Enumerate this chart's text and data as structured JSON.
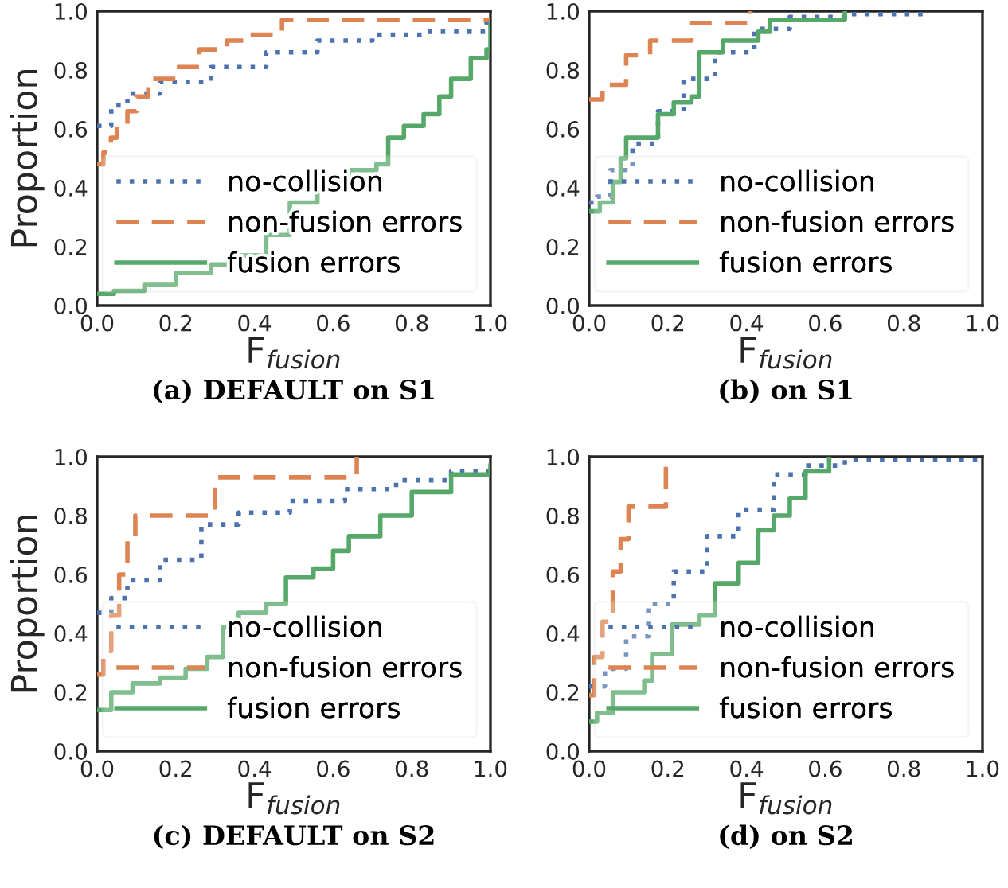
{
  "chart_data": [
    {
      "type": "step",
      "title": "(a) DEFAULT on S1",
      "xlabel": "F$_{fusion}$",
      "ylabel": "Proportion",
      "xlim": [
        0,
        1
      ],
      "ylim": [
        0,
        1
      ],
      "xticks": [
        {
          "value": 0,
          "label": "0.0"
        },
        {
          "value": 0.2,
          "label": "0.2"
        },
        {
          "value": 0.4,
          "label": "0.4"
        },
        {
          "value": 0.6,
          "label": "0.6"
        },
        {
          "value": 0.8,
          "label": "0.8"
        },
        {
          "value": 1,
          "label": "1.0"
        }
      ],
      "yticks": [
        {
          "value": 0,
          "label": "0.0"
        },
        {
          "value": 0.2,
          "label": "0.2"
        },
        {
          "value": 0.4,
          "label": "0.4"
        },
        {
          "value": 0.6,
          "label": "0.6"
        },
        {
          "value": 0.8,
          "label": "0.8"
        },
        {
          "value": 1,
          "label": "1.0"
        }
      ],
      "legend": "bottom right",
      "grid": false,
      "series": [
        {
          "name": "no-collision",
          "color": "#4c72b0",
          "line_style": "dotted",
          "x": [
            0,
            0.036,
            0.077,
            0.16,
            0.29,
            0.43,
            0.56,
            0.7,
            0.83,
            0.99,
            1
          ],
          "values": [
            0.61,
            0.68,
            0.72,
            0.76,
            0.81,
            0.86,
            0.9,
            0.92,
            0.93,
            0.96,
            0.96
          ]
        },
        {
          "name": "non-fusion errors",
          "color": "#dd8452",
          "line_style": "dashed",
          "x": [
            0,
            0.016,
            0.035,
            0.05,
            0.077,
            0.1,
            0.13,
            0.2,
            0.26,
            0.33,
            0.39,
            0.47,
            1
          ],
          "values": [
            0.48,
            0.52,
            0.57,
            0.61,
            0.66,
            0.71,
            0.77,
            0.81,
            0.87,
            0.9,
            0.92,
            0.97,
            0.97
          ]
        },
        {
          "name": "fusion errors",
          "color": "#55a868",
          "line_style": "solid",
          "x": [
            0,
            0.043,
            0.12,
            0.2,
            0.29,
            0.36,
            0.43,
            0.49,
            0.56,
            0.64,
            0.71,
            0.74,
            0.78,
            0.83,
            0.87,
            0.9,
            0.95,
            0.99,
            1
          ],
          "values": [
            0.04,
            0.05,
            0.07,
            0.11,
            0.14,
            0.17,
            0.24,
            0.35,
            0.42,
            0.46,
            0.48,
            0.57,
            0.61,
            0.65,
            0.71,
            0.77,
            0.84,
            0.87,
            0.96
          ]
        }
      ]
    },
    {
      "type": "step",
      "title": "(b) on S1",
      "xlabel": "F$_{fusion}$",
      "xlim": [
        0,
        1
      ],
      "ylim": [
        0,
        1
      ],
      "xticks": [
        {
          "value": 0,
          "label": "0.0"
        },
        {
          "value": 0.2,
          "label": "0.2"
        },
        {
          "value": 0.4,
          "label": "0.4"
        },
        {
          "value": 0.6,
          "label": "0.6"
        },
        {
          "value": 0.8,
          "label": "0.8"
        },
        {
          "value": 1,
          "label": "1.0"
        }
      ],
      "yticks": [
        {
          "value": 0,
          "label": "0.0"
        },
        {
          "value": 0.2,
          "label": "0.2"
        },
        {
          "value": 0.4,
          "label": "0.4"
        },
        {
          "value": 0.6,
          "label": "0.6"
        },
        {
          "value": 0.8,
          "label": "0.8"
        },
        {
          "value": 1,
          "label": "1.0"
        }
      ],
      "legend": "bottom right",
      "grid": false,
      "series": [
        {
          "name": "no-collision",
          "color": "#4c72b0",
          "line_style": "dotted",
          "x": [
            0,
            0.02,
            0.054,
            0.11,
            0.175,
            0.24,
            0.32,
            0.42,
            0.51,
            0.65,
            0.86
          ],
          "values": [
            0.35,
            0.37,
            0.46,
            0.55,
            0.66,
            0.77,
            0.86,
            0.94,
            0.98,
            0.99,
            1.0
          ]
        },
        {
          "name": "non-fusion errors",
          "color": "#dd8452",
          "line_style": "dashed",
          "x": [
            0,
            0.034,
            0.094,
            0.155,
            0.26,
            0.41
          ],
          "values": [
            0.7,
            0.75,
            0.85,
            0.9,
            0.96,
            1.0
          ]
        },
        {
          "name": "fusion errors",
          "color": "#55a868",
          "line_style": "solid",
          "x": [
            0,
            0.027,
            0.06,
            0.08,
            0.094,
            0.175,
            0.215,
            0.26,
            0.28,
            0.34,
            0.43,
            0.46,
            0.65
          ],
          "values": [
            0.32,
            0.35,
            0.42,
            0.5,
            0.57,
            0.65,
            0.69,
            0.71,
            0.86,
            0.9,
            0.93,
            0.97,
            1.0
          ]
        }
      ]
    },
    {
      "type": "step",
      "title": "(c) DEFAULT on S2",
      "xlabel": "F$_{fusion}$",
      "ylabel": "Proportion",
      "xlim": [
        0,
        1
      ],
      "ylim": [
        0,
        1
      ],
      "xticks": [
        {
          "value": 0,
          "label": "0.0"
        },
        {
          "value": 0.2,
          "label": "0.2"
        },
        {
          "value": 0.4,
          "label": "0.4"
        },
        {
          "value": 0.6,
          "label": "0.6"
        },
        {
          "value": 0.8,
          "label": "0.8"
        },
        {
          "value": 1,
          "label": "1.0"
        }
      ],
      "yticks": [
        {
          "value": 0,
          "label": "0.0"
        },
        {
          "value": 0.2,
          "label": "0.2"
        },
        {
          "value": 0.4,
          "label": "0.4"
        },
        {
          "value": 0.6,
          "label": "0.6"
        },
        {
          "value": 0.8,
          "label": "0.8"
        },
        {
          "value": 1,
          "label": "1.0"
        }
      ],
      "legend": "bottom right",
      "grid": false,
      "series": [
        {
          "name": "no-collision",
          "color": "#4c72b0",
          "line_style": "dotted",
          "x": [
            0,
            0.036,
            0.077,
            0.16,
            0.265,
            0.36,
            0.49,
            0.63,
            0.76,
            0.9,
            1
          ],
          "values": [
            0.47,
            0.52,
            0.58,
            0.65,
            0.77,
            0.81,
            0.85,
            0.89,
            0.92,
            0.95,
            0.98
          ]
        },
        {
          "name": "non-fusion errors",
          "color": "#dd8452",
          "line_style": "dashed",
          "x": [
            0,
            0.016,
            0.036,
            0.056,
            0.077,
            0.097,
            0.3,
            0.66
          ],
          "values": [
            0.26,
            0.34,
            0.46,
            0.6,
            0.73,
            0.8,
            0.93,
            1.0
          ]
        },
        {
          "name": "fusion errors",
          "color": "#55a868",
          "line_style": "solid",
          "x": [
            0,
            0.036,
            0.09,
            0.16,
            0.225,
            0.28,
            0.32,
            0.36,
            0.43,
            0.48,
            0.55,
            0.6,
            0.64,
            0.72,
            0.8,
            0.9,
            1
          ],
          "values": [
            0.14,
            0.2,
            0.23,
            0.25,
            0.28,
            0.32,
            0.42,
            0.47,
            0.5,
            0.59,
            0.62,
            0.68,
            0.73,
            0.8,
            0.88,
            0.94,
            0.97
          ]
        }
      ]
    },
    {
      "type": "step",
      "title": "(d) on S2",
      "xlabel": "F$_{fusion}$",
      "xlim": [
        0,
        1
      ],
      "ylim": [
        0,
        1
      ],
      "xticks": [
        {
          "value": 0,
          "label": "0.0"
        },
        {
          "value": 0.2,
          "label": "0.2"
        },
        {
          "value": 0.4,
          "label": "0.4"
        },
        {
          "value": 0.6,
          "label": "0.6"
        },
        {
          "value": 0.8,
          "label": "0.8"
        },
        {
          "value": 1,
          "label": "1.0"
        }
      ],
      "yticks": [
        {
          "value": 0,
          "label": "0.0"
        },
        {
          "value": 0.2,
          "label": "0.2"
        },
        {
          "value": 0.4,
          "label": "0.4"
        },
        {
          "value": 0.6,
          "label": "0.6"
        },
        {
          "value": 0.8,
          "label": "0.8"
        },
        {
          "value": 1,
          "label": "1.0"
        }
      ],
      "legend": "bottom right",
      "grid": false,
      "series": [
        {
          "name": "no-collision",
          "color": "#4c72b0",
          "line_style": "dotted",
          "x": [
            0,
            0.04,
            0.094,
            0.15,
            0.215,
            0.3,
            0.38,
            0.47,
            0.55,
            0.65,
            1
          ],
          "values": [
            0.22,
            0.28,
            0.39,
            0.5,
            0.61,
            0.73,
            0.82,
            0.94,
            0.97,
            0.99,
            1.0
          ]
        },
        {
          "name": "non-fusion errors",
          "color": "#dd8452",
          "line_style": "dashed",
          "x": [
            0,
            0.013,
            0.034,
            0.06,
            0.08,
            0.1,
            0.195
          ],
          "values": [
            0.19,
            0.32,
            0.44,
            0.61,
            0.72,
            0.83,
            1.0
          ]
        },
        {
          "name": "fusion errors",
          "color": "#55a868",
          "line_style": "solid",
          "x": [
            0,
            0.02,
            0.06,
            0.14,
            0.16,
            0.21,
            0.28,
            0.32,
            0.38,
            0.43,
            0.47,
            0.51,
            0.55,
            0.61
          ],
          "values": [
            0.1,
            0.13,
            0.2,
            0.24,
            0.33,
            0.43,
            0.46,
            0.57,
            0.64,
            0.75,
            0.8,
            0.86,
            0.95,
            1.0
          ]
        }
      ]
    }
  ]
}
